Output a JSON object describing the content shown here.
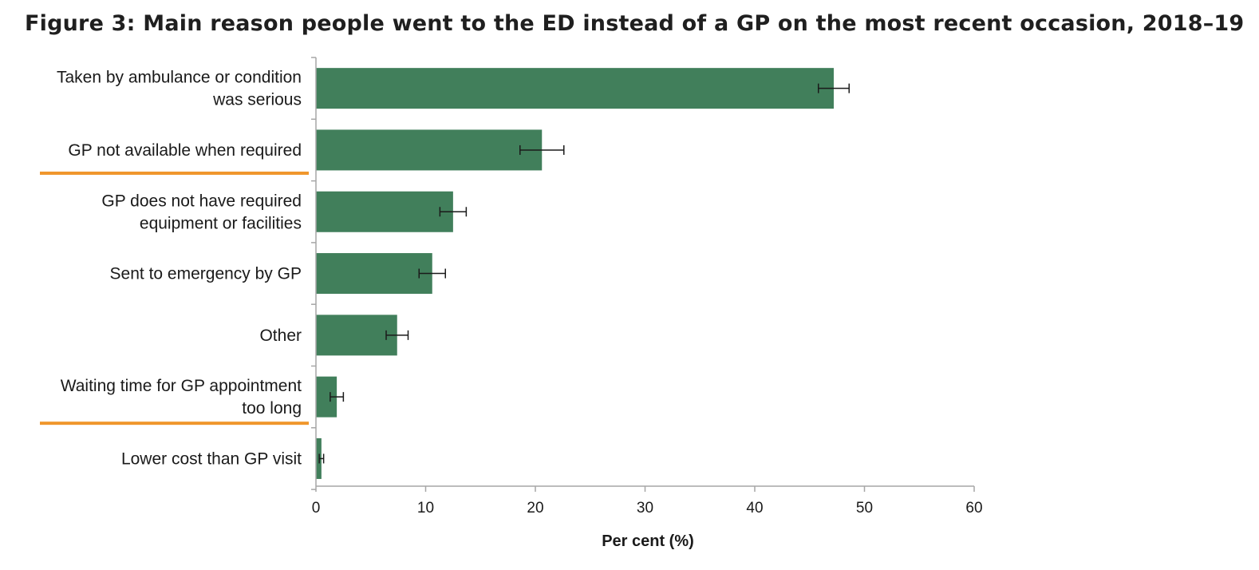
{
  "title": "Figure 3: Main reason people went to the ED instead of a GP on the most recent occasion, 2018–19",
  "chart_data": {
    "type": "bar",
    "orientation": "horizontal",
    "categories": [
      [
        "Taken by ambulance or condition",
        "was serious"
      ],
      [
        "GP not available when required"
      ],
      [
        "GP does not have required",
        "equipment or facilities"
      ],
      [
        "Sent to emergency by GP"
      ],
      [
        "Other"
      ],
      [
        "Waiting time for GP appointment",
        "too long"
      ],
      [
        "Lower cost than GP visit"
      ]
    ],
    "values": [
      47.2,
      20.6,
      12.5,
      10.6,
      7.4,
      1.9,
      0.5
    ],
    "error_low": [
      45.8,
      18.6,
      11.3,
      9.4,
      6.4,
      1.3,
      0.3
    ],
    "error_high": [
      48.6,
      22.6,
      13.7,
      11.8,
      8.4,
      2.5,
      0.7
    ],
    "highlighted_categories": [
      1,
      5
    ],
    "xlabel": "Per cent (%)",
    "ylabel": "",
    "xlim": [
      0,
      60
    ],
    "xticks": [
      0,
      10,
      20,
      30,
      40,
      50,
      60
    ],
    "grid": false,
    "legend": "none",
    "colors": {
      "bar": "#417f5b",
      "highlight": "#f0962b",
      "axis": "#a6a6a6",
      "error_bar": "#1a1a1a"
    }
  }
}
